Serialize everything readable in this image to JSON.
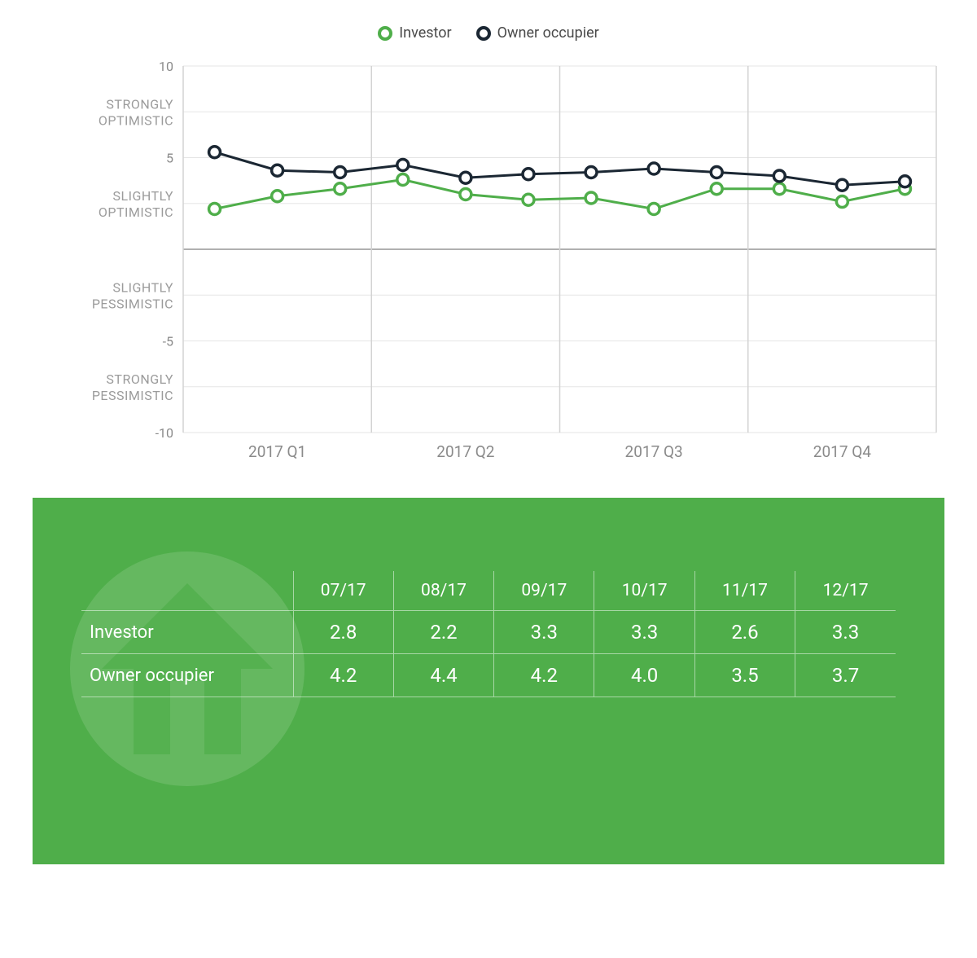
{
  "chart": {
    "type": "line",
    "ylim": [
      -10,
      10
    ],
    "y_numeric_ticks": [
      10,
      5,
      -5,
      -10
    ],
    "y_category_labels": [
      {
        "text": "STRONGLY OPTIMISTIC",
        "y": 7.5
      },
      {
        "text": "SLIGHTLY OPTIMISTIC",
        "y": 2.5
      },
      {
        "text": "SLIGHTLY PESSIMISTIC",
        "y": -2.5
      },
      {
        "text": "STRONGLY PESSIMISTIC",
        "y": -7.5
      }
    ],
    "x_labels": [
      "2017 Q1",
      "2017 Q2",
      "2017 Q3",
      "2017 Q4"
    ],
    "x_quarter_boundaries": [
      0,
      3,
      6,
      9,
      12
    ],
    "grid_color": "#e5e5e5",
    "zero_line_color": "#b0b0b0",
    "vgrid_color": "#d3d3d3",
    "background_color": "#ffffff",
    "marker_radius": 7,
    "marker_stroke_width": 3.5,
    "line_width": 3,
    "series": [
      {
        "name": "Investor",
        "color": "#4fae4a",
        "values": [
          2.2,
          2.9,
          3.3,
          3.8,
          3.0,
          2.7,
          2.8,
          2.2,
          3.3,
          3.3,
          2.6,
          3.3
        ]
      },
      {
        "name": "Owner occupier",
        "color": "#1b2733",
        "values": [
          5.3,
          4.3,
          4.2,
          4.6,
          3.9,
          4.1,
          4.2,
          4.4,
          4.2,
          4.0,
          3.5,
          3.7
        ]
      }
    ]
  },
  "legend": {
    "items": [
      {
        "label": "Investor",
        "color": "#4fae4a"
      },
      {
        "label": "Owner occupier",
        "color": "#1b2733"
      }
    ]
  },
  "panel": {
    "background_color": "#4fae4a",
    "text_color": "#ffffff"
  },
  "table": {
    "columns": [
      "07/17",
      "08/17",
      "09/17",
      "10/17",
      "11/17",
      "12/17"
    ],
    "rows": [
      {
        "label": "Investor",
        "cells": [
          "2.8",
          "2.2",
          "3.3",
          "3.3",
          "2.6",
          "3.3"
        ]
      },
      {
        "label": "Owner occupier",
        "cells": [
          "4.2",
          "4.4",
          "4.2",
          "4.0",
          "3.5",
          "3.7"
        ]
      }
    ]
  }
}
